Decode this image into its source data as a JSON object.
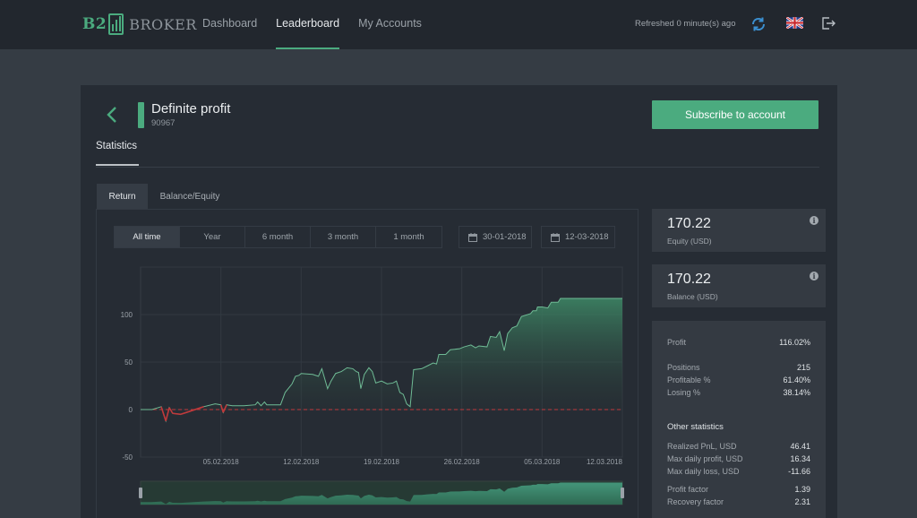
{
  "brand": {
    "b2": "B2",
    "broker": "BROKER"
  },
  "nav": {
    "items": [
      {
        "label": "Dashboard"
      },
      {
        "label": "Leaderboard"
      },
      {
        "label": "My Accounts"
      }
    ],
    "refreshed": "Refreshed 0 minute(s) ago"
  },
  "account": {
    "name": "Definite profit",
    "number": "90967",
    "subscribe_label": "Subscribe to account"
  },
  "tabs": {
    "statistics": "Statistics",
    "return": "Return",
    "balance_equity": "Balance/Equity"
  },
  "filters": {
    "periods": [
      "All time",
      "Year",
      "6 month",
      "3 month",
      "1 month"
    ],
    "active_period": "All time",
    "date_from": "30-01-2018",
    "date_to": "12-03-2018"
  },
  "cards": {
    "equity_value": "170.22",
    "equity_label": "Equity (USD)",
    "balance_value": "170.22",
    "balance_label": "Balance (USD)"
  },
  "stats": {
    "profit_label": "Profit",
    "profit_value": "116.02%",
    "positions_label": "Positions",
    "positions_value": "215",
    "profitable_label": "Profitable %",
    "profitable_value": "61.40%",
    "losing_label": "Losing %",
    "losing_value": "38.14%",
    "other_heading": "Other statistics",
    "realized_label": "Realized PnL, USD",
    "realized_value": "46.41",
    "max_profit_label": "Max daily profit, USD",
    "max_profit_value": "16.34",
    "max_loss_label": "Max daily loss, USD",
    "max_loss_value": "-11.66",
    "profit_factor_label": "Profit factor",
    "profit_factor_value": "1.39",
    "recovery_label": "Recovery factor",
    "recovery_value": "2.31"
  },
  "colors": {
    "accent": "#4bab7f",
    "negative": "#c0393b",
    "line": "#6fbb95"
  },
  "chart_data": {
    "type": "area",
    "y_ticks": [
      100,
      50,
      0,
      -50
    ],
    "ylim": [
      -50,
      150
    ],
    "x_ticks": [
      "05.02.2018",
      "12.02.2018",
      "19.02.2018",
      "26.02.2018",
      "05.03.2018",
      "12.03.2018"
    ],
    "x_tick_pos": [
      7,
      14,
      21,
      28,
      35,
      42
    ],
    "x_range": [
      0,
      42
    ],
    "grid": true,
    "zero_line": "dashed red",
    "points": [
      [
        0.0,
        0
      ],
      [
        1.0,
        0
      ],
      [
        1.8,
        3
      ],
      [
        2.2,
        -12
      ],
      [
        2.5,
        2
      ],
      [
        2.8,
        -4
      ],
      [
        3.5,
        -5
      ],
      [
        4.0,
        -3
      ],
      [
        5.5,
        3
      ],
      [
        6.5,
        6
      ],
      [
        7.0,
        5
      ],
      [
        7.2,
        -3
      ],
      [
        7.5,
        5
      ],
      [
        8.0,
        4
      ],
      [
        9.0,
        4
      ],
      [
        10.0,
        5
      ],
      [
        10.2,
        8
      ],
      [
        10.5,
        4
      ],
      [
        10.8,
        8
      ],
      [
        11.0,
        5
      ],
      [
        11.8,
        5
      ],
      [
        12.2,
        5
      ],
      [
        12.6,
        18
      ],
      [
        13.2,
        27
      ],
      [
        13.5,
        35
      ],
      [
        13.8,
        36
      ],
      [
        14.0,
        38
      ],
      [
        15.0,
        37
      ],
      [
        15.5,
        35
      ],
      [
        15.8,
        43
      ],
      [
        16.3,
        22
      ],
      [
        16.6,
        30
      ],
      [
        17.0,
        38
      ],
      [
        17.5,
        40
      ],
      [
        18.0,
        44
      ],
      [
        18.5,
        43
      ],
      [
        18.8,
        40
      ],
      [
        19.0,
        39
      ],
      [
        19.2,
        22
      ],
      [
        19.5,
        37
      ],
      [
        19.9,
        44
      ],
      [
        20.2,
        40
      ],
      [
        20.5,
        28
      ],
      [
        21.0,
        30
      ],
      [
        21.5,
        27
      ],
      [
        22.0,
        28
      ],
      [
        22.3,
        30
      ],
      [
        22.6,
        18
      ],
      [
        22.9,
        16
      ],
      [
        23.2,
        6
      ],
      [
        23.5,
        3
      ],
      [
        23.8,
        42
      ],
      [
        24.5,
        43
      ],
      [
        25.0,
        46
      ],
      [
        25.5,
        49
      ],
      [
        25.8,
        48
      ],
      [
        26.0,
        58
      ],
      [
        26.6,
        58
      ],
      [
        27.0,
        63
      ],
      [
        27.8,
        64
      ],
      [
        28.2,
        66
      ],
      [
        28.8,
        68
      ],
      [
        29.2,
        65
      ],
      [
        29.5,
        67
      ],
      [
        30.2,
        66
      ],
      [
        30.5,
        77
      ],
      [
        31.0,
        76
      ],
      [
        31.3,
        82
      ],
      [
        31.7,
        62
      ],
      [
        32.0,
        80
      ],
      [
        32.4,
        86
      ],
      [
        32.8,
        88
      ],
      [
        33.2,
        98
      ],
      [
        34.0,
        101
      ],
      [
        34.2,
        104
      ],
      [
        34.5,
        104
      ],
      [
        34.6,
        108
      ],
      [
        35.0,
        108
      ],
      [
        35.5,
        107
      ],
      [
        35.8,
        113
      ],
      [
        36.4,
        113
      ],
      [
        36.6,
        117
      ],
      [
        42.0,
        117
      ]
    ]
  }
}
